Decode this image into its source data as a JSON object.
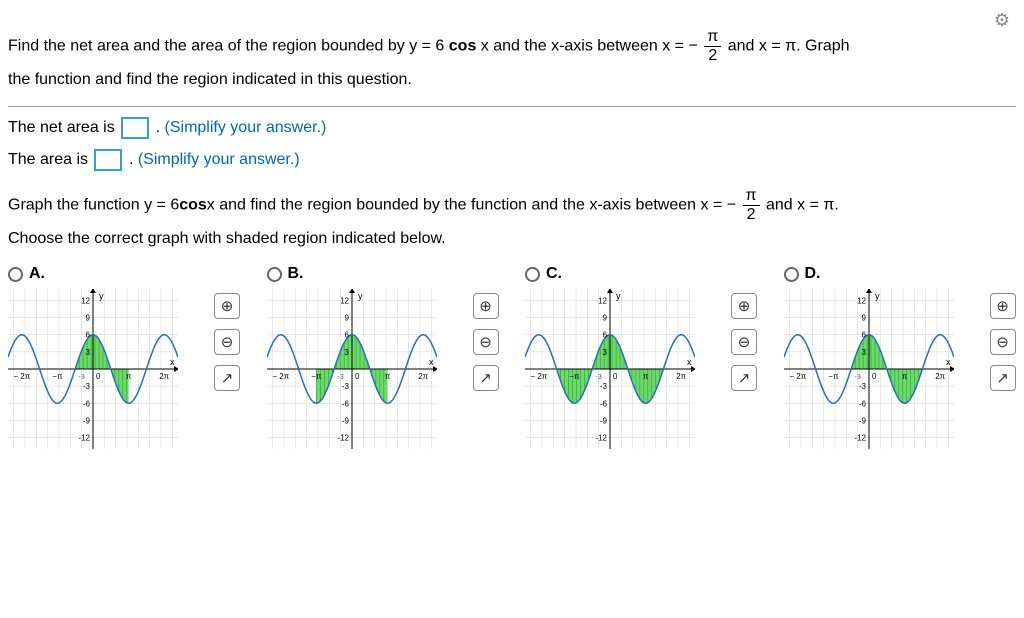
{
  "gearIcon": "⚙",
  "question": {
    "part1": "Find the net area and the area of the region bounded by y = 6 ",
    "cosx": "cos",
    "part1b": " x and the x-axis between x = − ",
    "fracNum": "π",
    "fracDen": "2",
    "part2": " and x = π. Graph",
    "part3": "the function and find the region indicated in this question."
  },
  "answers": {
    "netAreaLabel": "The net area is ",
    "areaLabel": "The area is ",
    "period": ". ",
    "hint": "(Simplify your answer.)"
  },
  "graphPrompt": {
    "part1": "Graph the function y = 6",
    "cosx": "cos",
    "part1b": "x and find the region bounded by the function and the x-axis between x = − ",
    "fracNum": "π",
    "fracDen": "2",
    "part2": " and x = π.",
    "part3": "Choose the correct graph with shaded region indicated below."
  },
  "options": [
    {
      "label": "A."
    },
    {
      "label": "B."
    },
    {
      "label": "C."
    },
    {
      "label": "D."
    }
  ],
  "chart": {
    "yTicks": [
      12,
      9,
      6,
      3,
      -3,
      -6,
      -9,
      -12
    ],
    "yTickLabelsTop": [
      "12",
      "9",
      "6",
      "3"
    ],
    "yTickLabelsBottom": [
      "-3",
      "-6",
      "-9",
      "-12"
    ],
    "xTicks": [
      -6.283,
      -3.1416,
      0,
      3.1416,
      6.283
    ],
    "xTickLabels": [
      "− 2π",
      "−π",
      "0",
      "π",
      "2π"
    ],
    "xExtra": "-3",
    "axisLabelX": "x",
    "axisLabelY": "y",
    "amplitude": 6,
    "ylim": [
      -14,
      14
    ],
    "xlim": [
      -7.5,
      7.5
    ],
    "curveColor": "#2a6cc0",
    "shadeColor": "#6bd96b",
    "gridColor": "#d0d0d0",
    "bgColor": "#ffffff"
  },
  "shadeVariants": {
    "A": [
      -1.5708,
      3.1416
    ],
    "B": [
      -3.1416,
      3.1416
    ],
    "C": [
      -4.7124,
      4.7124
    ],
    "D": [
      -1.5708,
      4.7124
    ]
  },
  "controls": {
    "zoomIn": "⊕",
    "zoomOut": "⊖",
    "open": "↗"
  }
}
